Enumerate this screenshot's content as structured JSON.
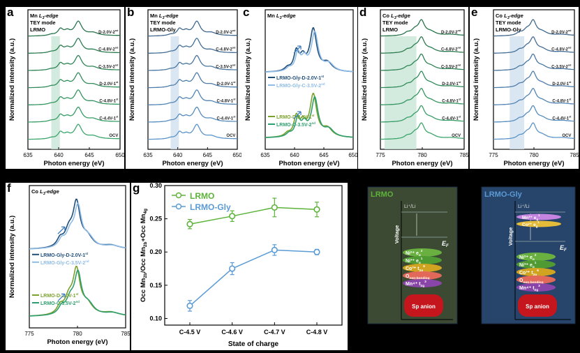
{
  "chart_data": [
    {
      "type": "line",
      "panel": "a",
      "notes": [
        "Mn",
        "L3-edge",
        "TEY mode",
        "LRMO"
      ],
      "xlabel": "Photon energy (eV)",
      "ylabel": "Normalized intensity (a.u.)",
      "xlim": [
        635,
        650
      ],
      "xticks": [
        "635",
        "640",
        "645",
        "650"
      ],
      "highlight": [
        638.8,
        640.2
      ],
      "color": "#3aa56b",
      "series": [
        {
          "name": "D-2.0V-2",
          "sup": "nd"
        },
        {
          "name": "C-4.8V-2",
          "sup": "nd"
        },
        {
          "name": "C-3.5V-2",
          "sup": "nd"
        },
        {
          "name": "D-2.0V-1",
          "sup": "st"
        },
        {
          "name": "C-4.8V-1",
          "sup": "st"
        },
        {
          "name": "C-4.4V-1",
          "sup": "st"
        },
        {
          "name": "OCV",
          "sup": ""
        }
      ]
    },
    {
      "type": "line",
      "panel": "b",
      "notes": [
        "Mn",
        "L3-edge",
        "TEY mode",
        "LRMO-Gly"
      ],
      "xlabel": "Photon energy (eV)",
      "ylabel": "Normalized intensity (a.u.)",
      "xlim": [
        635,
        650
      ],
      "xticks": [
        "635",
        "640",
        "645",
        "650"
      ],
      "highlight": [
        638.8,
        640.2
      ],
      "color": "#5b93c8",
      "series": [
        {
          "name": "D-2.0V-2",
          "sup": "nd"
        },
        {
          "name": "C-4.8V-2",
          "sup": "nd"
        },
        {
          "name": "C-3.5V-2",
          "sup": "nd"
        },
        {
          "name": "D-2.0V-1",
          "sup": "st"
        },
        {
          "name": "C-4.8V-1",
          "sup": "st"
        },
        {
          "name": "C-4.4V-1",
          "sup": "st"
        },
        {
          "name": "OCV",
          "sup": ""
        }
      ]
    },
    {
      "type": "line",
      "panel": "c",
      "notes": [
        "Mn",
        "L3-edge"
      ],
      "xlabel": "Photon energy (eV)",
      "ylabel": "Normalized intensity (a.u.)",
      "xlim": [
        635,
        650
      ],
      "xticks": [
        "635",
        "640",
        "645",
        "650"
      ],
      "series": [
        {
          "name": "LRMO-Gly-D-2.0V-1",
          "sup": "st",
          "color": "#1f4e79"
        },
        {
          "name": "LRMO-Gly-C-3.5V-2",
          "sup": "nd",
          "color": "#8fbce6"
        },
        {
          "name": "LRMO-D-2.0V-1",
          "sup": "st",
          "color": "#7aa22c"
        },
        {
          "name": "LRMO-C-3.5V-2",
          "sup": "nd",
          "color": "#2f9e6e"
        }
      ]
    },
    {
      "type": "line",
      "panel": "d",
      "notes": [
        "Co",
        "L3-edge",
        "TEY mode",
        "LRMO"
      ],
      "xlabel": "Photon energy (eV)",
      "ylabel": "Normalized intensity (a.u.)",
      "xlim": [
        775,
        785
      ],
      "xticks": [
        "775",
        "780",
        "785"
      ],
      "highlight": [
        775.5,
        779.3
      ],
      "color": "#3aa56b",
      "series": [
        {
          "name": "D-2.0V-2",
          "sup": "nd"
        },
        {
          "name": "C-4.8V-2",
          "sup": "nd"
        },
        {
          "name": "C-3.5V-2",
          "sup": "nd"
        },
        {
          "name": "D-2.0V-1",
          "sup": "st"
        },
        {
          "name": "C-4.8V-1",
          "sup": "st"
        },
        {
          "name": "C-4.4V-1",
          "sup": "st"
        },
        {
          "name": "OCV",
          "sup": ""
        }
      ]
    },
    {
      "type": "line",
      "panel": "e",
      "notes": [
        "Co",
        "L3-edge",
        "TEY mode",
        "LRMO-Gly"
      ],
      "xlabel": "Photon energy (eV)",
      "ylabel": "Normalized intensity (a.u.)",
      "xlim": [
        775,
        785
      ],
      "xticks": [
        "775",
        "780",
        "785"
      ],
      "highlight": [
        777.0,
        778.8
      ],
      "color": "#5b93c8",
      "series": [
        {
          "name": "D-2.0V-2",
          "sup": "nd"
        },
        {
          "name": "C-4.8V-2",
          "sup": "nd"
        },
        {
          "name": "C-3.5V-2",
          "sup": "nd"
        },
        {
          "name": "D-2.0V-1",
          "sup": "st"
        },
        {
          "name": "C-4.8V-1",
          "sup": "st"
        },
        {
          "name": "C-4.4V-1",
          "sup": "st"
        },
        {
          "name": "OCV",
          "sup": ""
        }
      ]
    },
    {
      "type": "line",
      "panel": "f",
      "notes": [
        "Co",
        "L3-edge"
      ],
      "xlabel": "Photon energy (eV)",
      "ylabel": "Normalized intensity (a.u.)",
      "xlim": [
        775,
        785
      ],
      "xticks": [
        "775",
        "780",
        "785"
      ],
      "series": [
        {
          "name": "LRMO-Gly-D-2.0V-1",
          "sup": "st",
          "color": "#1f4e79"
        },
        {
          "name": "LRMO-Gly-C-3.5V-2",
          "sup": "nd",
          "color": "#8fbce6"
        },
        {
          "name": "LRMO-D-2.0V-1",
          "sup": "st",
          "color": "#7aa22c"
        },
        {
          "name": "LRMO-C-3.5V-2",
          "sup": "nd",
          "color": "#2f9e6e"
        }
      ]
    },
    {
      "type": "line",
      "panel": "g",
      "xlabel": "State of charge",
      "ylabel": "Occ Mn2b/Occ Mn2b+Occ Mn4g",
      "categories": [
        "C-4.5 V",
        "C-4.6 V",
        "C-4.7 V",
        "C-4.8 V"
      ],
      "ylim": [
        0.09,
        0.3
      ],
      "yticks": [
        "0.10",
        "0.15",
        "0.20",
        "0.25",
        "0.30"
      ],
      "series": [
        {
          "name": "LRMO",
          "color": "#5db33a",
          "values": [
            0.242,
            0.254,
            0.267,
            0.264
          ],
          "errors": [
            0.007,
            0.008,
            0.014,
            0.011
          ]
        },
        {
          "name": "LRMO-Gly",
          "color": "#5b9bd5",
          "values": [
            0.119,
            0.175,
            0.203,
            0.2
          ],
          "errors": [
            0.008,
            0.009,
            0.008,
            0.004
          ]
        }
      ]
    }
  ],
  "diagrams": [
    {
      "title": "LRMO",
      "title_color": "#5db33a",
      "bg": "#3c4a34",
      "axis_label": "Voltage",
      "top_label": "Li⁺/Li",
      "ef_label": "E",
      "ef_sub": "F",
      "bands": [
        {
          "main": "Ni²⁺ e",
          "sub": "g",
          "sup": "2",
          "color": "#69b040"
        },
        {
          "main": "Ni³⁺ e",
          "sub": "g",
          "sup": "1",
          "color": "#4f9a32"
        },
        {
          "main": "Co³⁺ t",
          "sub": "2g",
          "sup": "6",
          "color": "#d0a420"
        },
        {
          "main": "O",
          "sub": "non-bonding",
          "sup": "",
          "color": "#e2695a"
        },
        {
          "main": "Mn⁴⁺ t",
          "sub": "2g",
          "sup": "3",
          "color": "#8a45a8"
        }
      ],
      "upper_bands": [],
      "anion": "Sp anion"
    },
    {
      "title": "LRMO-Gly",
      "title_color": "#5b9bd5",
      "bg": "#27446a",
      "axis_label": "Voltage",
      "top_label": "Li⁺/Li",
      "ef_label": "E",
      "ef_sub": "F",
      "upper_bands": [
        {
          "main": "Mn³⁺ e",
          "sub": "g",
          "sup": "1",
          "color": "#c584e0"
        },
        {
          "main": "Co²⁺ e",
          "sub": "g",
          "sup": "1",
          "color": "#e5bc3a"
        }
      ],
      "bands": [
        {
          "main": "Ni²⁺ e",
          "sub": "g",
          "sup": "2",
          "color": "#69b040"
        },
        {
          "main": "Ni³⁺ e",
          "sub": "g",
          "sup": "1",
          "color": "#4f9a32"
        },
        {
          "main": "Co³⁺ t",
          "sub": "2g",
          "sup": "6",
          "color": "#d0a420"
        },
        {
          "main": "O",
          "sub": "non-bonding",
          "sup": "",
          "color": "#e2695a"
        },
        {
          "main": "Mn⁴⁺ t",
          "sub": "2g",
          "sup": "3",
          "color": "#8a45a8"
        }
      ],
      "anion": "Sp anion"
    }
  ]
}
